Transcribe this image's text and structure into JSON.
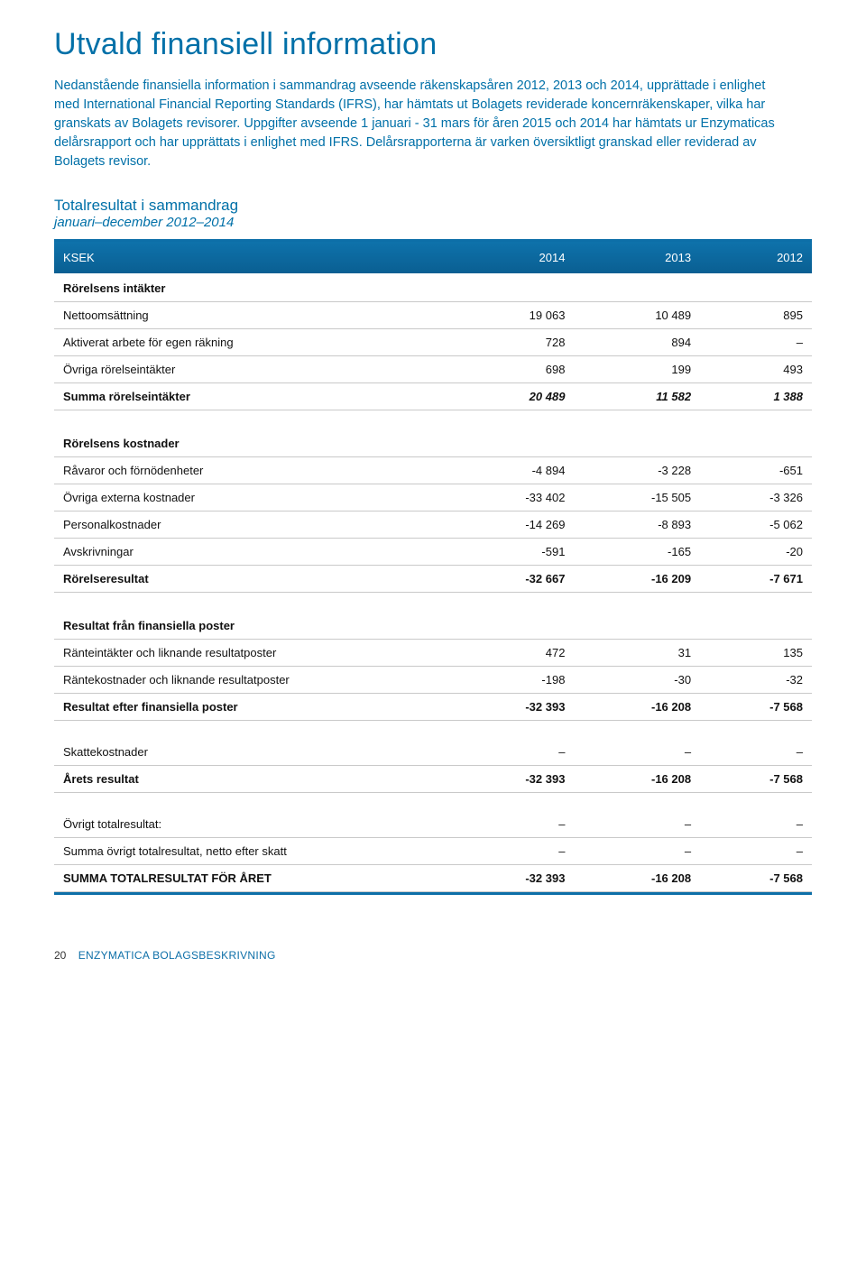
{
  "title": "Utvald finansiell information",
  "intro": "Nedanstående finansiella information i sammandrag avseende räkenskapsåren 2012, 2013 och 2014, upprättade i enlighet med International Financial Reporting Standards (IFRS), har hämtats ut Bolagets reviderade koncernräkenskaper, vilka har granskats av Bolagets revisorer. Uppgifter avseende 1 januari - 31 mars för åren 2015 och 2014 har hämtats ur Enzymaticas delårsrapport och har upprättats i enlighet med IFRS. Delårsrapporterna är varken översiktligt granskad eller reviderad av Bolagets revisor.",
  "subheading1": "Totalresultat i sammandrag",
  "subheading2": "januari–december 2012–2014",
  "columns": {
    "c0": "KSEK",
    "c1": "2014",
    "c2": "2013",
    "c3": "2012"
  },
  "sections": {
    "s1": {
      "head": "Rörelsens intäkter",
      "r1": {
        "label": "Nettoomsättning",
        "v1": "19 063",
        "v2": "10 489",
        "v3": "895"
      },
      "r2": {
        "label": "Aktiverat arbete för egen räkning",
        "v1": "728",
        "v2": "894",
        "v3": "–"
      },
      "r3": {
        "label": "Övriga rörelseintäkter",
        "v1": "698",
        "v2": "199",
        "v3": "493"
      },
      "sum": {
        "label": "Summa rörelseintäkter",
        "v1": "20 489",
        "v2": "11 582",
        "v3": "1 388"
      }
    },
    "s2": {
      "head": "Rörelsens kostnader",
      "r1": {
        "label": "Råvaror och förnödenheter",
        "v1": "-4 894",
        "v2": "-3 228",
        "v3": "-651"
      },
      "r2": {
        "label": "Övriga externa kostnader",
        "v1": "-33 402",
        "v2": "-15 505",
        "v3": "-3 326"
      },
      "r3": {
        "label": "Personalkostnader",
        "v1": "-14 269",
        "v2": "-8 893",
        "v3": "-5 062"
      },
      "r4": {
        "label": "Avskrivningar",
        "v1": "-591",
        "v2": "-165",
        "v3": "-20"
      },
      "sum": {
        "label": "Rörelseresultat",
        "v1": "-32 667",
        "v2": "-16 209",
        "v3": "-7 671"
      }
    },
    "s3": {
      "head": "Resultat från finansiella poster",
      "r1": {
        "label": "Ränteintäkter och liknande resultatposter",
        "v1": "472",
        "v2": "31",
        "v3": "135"
      },
      "r2": {
        "label": "Räntekostnader och liknande resultatposter",
        "v1": "-198",
        "v2": "-30",
        "v3": "-32"
      },
      "sum": {
        "label": "Resultat efter finansiella poster",
        "v1": "-32 393",
        "v2": "-16 208",
        "v3": "-7 568"
      }
    },
    "s4": {
      "r1": {
        "label": "Skattekostnader",
        "v1": "–",
        "v2": "–",
        "v3": "–"
      },
      "sum": {
        "label": "Årets resultat",
        "v1": "-32 393",
        "v2": "-16 208",
        "v3": "-7 568"
      }
    },
    "s5": {
      "r1": {
        "label": "Övrigt totalresultat:",
        "v1": "–",
        "v2": "–",
        "v3": "–"
      },
      "r2": {
        "label": "Summa övrigt totalresultat, netto efter skatt",
        "v1": "–",
        "v2": "–",
        "v3": "–"
      },
      "sum": {
        "label": "SUMMA TOTALRESULTAT FÖR ÅRET",
        "v1": "-32 393",
        "v2": "-16 208",
        "v3": "-7 568"
      }
    }
  },
  "footer": {
    "page": "20",
    "brand": "ENZYMATICA BOLAGSBESKRIVNING"
  }
}
